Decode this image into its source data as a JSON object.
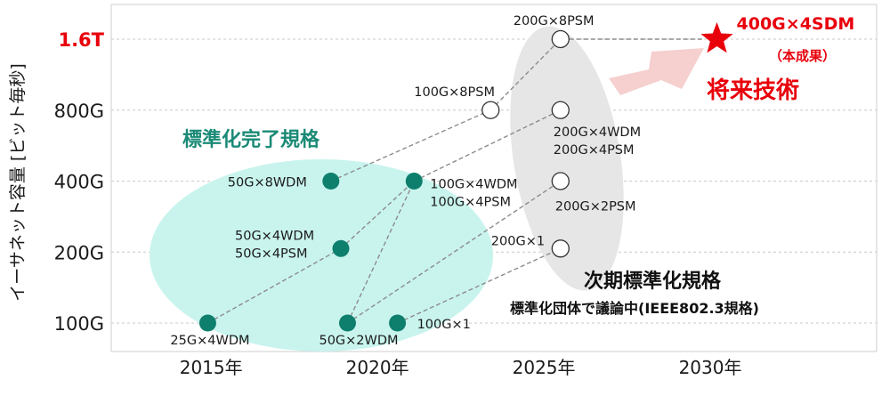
{
  "chart_data": {
    "type": "scatter",
    "ylabel": "イーサネット容量 [ビット毎秒]",
    "y_scale": "log",
    "y_ticks": [
      {
        "label": "100G",
        "value": 100,
        "highlight": false
      },
      {
        "label": "200G",
        "value": 200,
        "highlight": false
      },
      {
        "label": "400G",
        "value": 400,
        "highlight": false
      },
      {
        "label": "800G",
        "value": 800,
        "highlight": false
      },
      {
        "label": "1.6T",
        "value": 1600,
        "highlight": true
      }
    ],
    "x_ticks": [
      {
        "label": "2015年",
        "value": 2015
      },
      {
        "label": "2020年",
        "value": 2020
      },
      {
        "label": "2025年",
        "value": 2025
      },
      {
        "label": "2030年",
        "value": 2030
      }
    ],
    "xlim": [
      2012,
      2035
    ],
    "ylim": [
      88,
      1800
    ],
    "grid": true,
    "series": [
      {
        "kind": "standard",
        "points": [
          {
            "x": 2014.9,
            "y": 100,
            "label": "25G×4WDM"
          },
          {
            "x": 2019.1,
            "y": 100,
            "label": "50G×2WDM"
          },
          {
            "x": 2020.6,
            "y": 100,
            "label": "100G×1"
          },
          {
            "x": 2018.9,
            "y": 207,
            "label": "50G×4WDM\n50G×4PSM"
          },
          {
            "x": 2018.6,
            "y": 400,
            "label": "50G×8WDM"
          },
          {
            "x": 2021.1,
            "y": 400,
            "label": "100G×4WDM\n100G×4PSM"
          }
        ]
      },
      {
        "kind": "next",
        "points": [
          {
            "x": 2023.4,
            "y": 800,
            "label": "100G×8PSM"
          },
          {
            "x": 2025.5,
            "y": 207,
            "label": "200G×1"
          },
          {
            "x": 2025.5,
            "y": 400,
            "label": "200G×2PSM"
          },
          {
            "x": 2025.5,
            "y": 800,
            "label": "200G×4WDM\n200G×4PSM"
          },
          {
            "x": 2025.5,
            "y": 1600,
            "label": "200G×8PSM"
          }
        ]
      },
      {
        "kind": "result",
        "points": [
          {
            "x": 2030.2,
            "y": 1600,
            "label": "400G×4SDM"
          }
        ]
      }
    ],
    "links": [
      [
        "25G×4WDM",
        "50G×4WDM\n50G×4PSM"
      ],
      [
        "50G×4WDM\n50G×4PSM",
        "100G×4WDM\n100G×4PSM"
      ],
      [
        "50G×2WDM",
        "100G×4WDM\n100G×4PSM"
      ],
      [
        "50G×8WDM",
        "100G×8PSM"
      ],
      [
        "100G×4WDM\n100G×4PSM",
        "200G×4WDM\n200G×4PSM"
      ],
      [
        "50G×2WDM",
        "200G×2PSM"
      ],
      [
        "100G×1",
        "200G×1"
      ],
      [
        "100G×8PSM",
        "200G×8PSM"
      ]
    ],
    "annotations": {
      "standard_group": "標準化完了規格",
      "next_group": "次期標準化規格",
      "next_group_sub": "標準化団体で議論中(IEEE802.3規格)",
      "future_tech": "将来技術",
      "result_sub": "（本成果）"
    },
    "colors": {
      "standard_fill": "#c9f4ee",
      "standard_marker": "#0f7f6d",
      "standard_text": "#1a8a76",
      "next_fill": "#e6e6e6",
      "highlight": "#e8000b",
      "arrow": "#f6cfcf",
      "link": "#8c8c8c",
      "grid": "#c8c8c8"
    }
  }
}
